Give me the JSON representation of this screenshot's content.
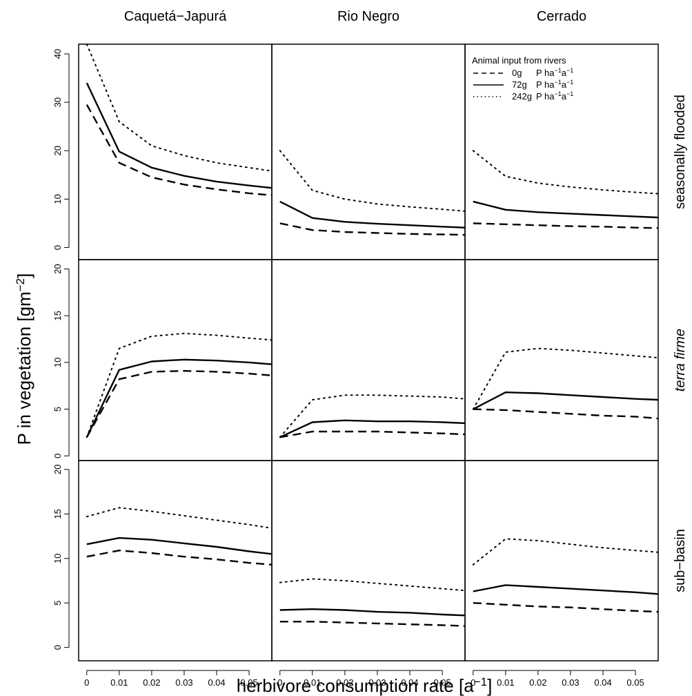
{
  "chart_data": {
    "type": "line",
    "columns": [
      "Caquetá−Japurá",
      "Rio Negro",
      "Cerrado"
    ],
    "rows": [
      "seasonally flooded",
      "terra firme",
      "sub−basin"
    ],
    "row_italic": [
      false,
      true,
      false
    ],
    "ylabel": "P in vegetation [gm",
    "ylabel_sup": "−2",
    "ylabel_close": "]",
    "xlabel": "herbivore consumption rate [a",
    "xlabel_sup": "−1",
    "xlabel_close": "]",
    "x": [
      0,
      0.01,
      0.02,
      0.03,
      0.04,
      0.05,
      0.057
    ],
    "xlim": [
      -0.0025,
      0.057
    ],
    "x_ticks": [
      0,
      0.01,
      0.02,
      0.03,
      0.04,
      0.05
    ],
    "x_tick_labels": [
      "0",
      "0.01",
      "0.02",
      "0.03",
      "0.04",
      "0.05"
    ],
    "ylim_by_row": [
      [
        -2.5,
        42
      ],
      [
        -0.5,
        21
      ],
      [
        -1.5,
        21
      ]
    ],
    "y_ticks_by_row": [
      [
        0,
        10,
        20,
        30,
        40
      ],
      [
        0,
        5,
        10,
        15,
        20
      ],
      [
        0,
        5,
        10,
        15,
        20
      ]
    ],
    "legend": {
      "title": "Animal input from rivers",
      "placement": "top-right",
      "entries": [
        {
          "amount": "0g",
          "unit": "P ha",
          "sup1": "−1",
          "mid": "a",
          "sup2": "−1",
          "style": "dashed"
        },
        {
          "amount": "72g",
          "unit": "P ha",
          "sup1": "−1",
          "mid": "a",
          "sup2": "−1",
          "style": "solid"
        },
        {
          "amount": "242g",
          "unit": "P ha",
          "sup1": "−1",
          "mid": "a",
          "sup2": "−1",
          "style": "dotted"
        }
      ]
    },
    "panels": [
      [
        {
          "series": [
            {
              "style": "dashed",
              "values": [
                29.5,
                17.5,
                14.5,
                13.0,
                12.0,
                11.2,
                10.8
              ]
            },
            {
              "style": "solid",
              "values": [
                34.0,
                19.8,
                16.5,
                14.8,
                13.6,
                12.8,
                12.3
              ]
            },
            {
              "style": "dotted",
              "values": [
                42.0,
                26.0,
                21.0,
                19.0,
                17.5,
                16.5,
                15.8
              ]
            }
          ]
        },
        {
          "series": [
            {
              "style": "dashed",
              "values": [
                5.0,
                3.6,
                3.2,
                3.0,
                2.8,
                2.7,
                2.6
              ]
            },
            {
              "style": "solid",
              "values": [
                9.5,
                6.1,
                5.3,
                4.9,
                4.6,
                4.3,
                4.1
              ]
            },
            {
              "style": "dotted",
              "values": [
                20.0,
                11.8,
                10.0,
                9.0,
                8.4,
                7.9,
                7.5
              ]
            }
          ]
        },
        {
          "series": [
            {
              "style": "dashed",
              "values": [
                5.0,
                4.8,
                4.6,
                4.4,
                4.3,
                4.1,
                4.0
              ]
            },
            {
              "style": "solid",
              "values": [
                9.5,
                7.8,
                7.3,
                7.0,
                6.7,
                6.4,
                6.2
              ]
            },
            {
              "style": "dotted",
              "values": [
                20.0,
                14.7,
                13.3,
                12.5,
                11.9,
                11.4,
                11.1
              ]
            }
          ]
        }
      ],
      [
        {
          "series": [
            {
              "style": "dashed",
              "values": [
                2.0,
                8.2,
                9.0,
                9.1,
                9.0,
                8.8,
                8.6
              ]
            },
            {
              "style": "solid",
              "values": [
                2.0,
                9.2,
                10.1,
                10.3,
                10.2,
                10.0,
                9.8
              ]
            },
            {
              "style": "dotted",
              "values": [
                2.0,
                11.5,
                12.8,
                13.1,
                12.9,
                12.6,
                12.4
              ]
            }
          ]
        },
        {
          "series": [
            {
              "style": "dashed",
              "values": [
                2.0,
                2.6,
                2.6,
                2.6,
                2.5,
                2.4,
                2.3
              ]
            },
            {
              "style": "solid",
              "values": [
                2.0,
                3.6,
                3.8,
                3.7,
                3.7,
                3.6,
                3.5
              ]
            },
            {
              "style": "dotted",
              "values": [
                2.0,
                6.0,
                6.5,
                6.5,
                6.4,
                6.3,
                6.1
              ]
            }
          ]
        },
        {
          "series": [
            {
              "style": "dashed",
              "values": [
                5.0,
                4.9,
                4.7,
                4.5,
                4.3,
                4.2,
                4.0
              ]
            },
            {
              "style": "solid",
              "values": [
                5.0,
                6.8,
                6.7,
                6.5,
                6.3,
                6.1,
                6.0
              ]
            },
            {
              "style": "dotted",
              "values": [
                5.0,
                11.1,
                11.5,
                11.3,
                11.0,
                10.7,
                10.5
              ]
            }
          ]
        }
      ],
      [
        {
          "series": [
            {
              "style": "dashed",
              "values": [
                10.2,
                10.9,
                10.6,
                10.2,
                9.9,
                9.5,
                9.3
              ]
            },
            {
              "style": "solid",
              "values": [
                11.6,
                12.3,
                12.1,
                11.7,
                11.3,
                10.8,
                10.5
              ]
            },
            {
              "style": "dotted",
              "values": [
                14.7,
                15.7,
                15.3,
                14.8,
                14.3,
                13.8,
                13.4
              ]
            }
          ]
        },
        {
          "series": [
            {
              "style": "dashed",
              "values": [
                2.9,
                2.9,
                2.8,
                2.7,
                2.6,
                2.5,
                2.4
              ]
            },
            {
              "style": "solid",
              "values": [
                4.2,
                4.3,
                4.2,
                4.0,
                3.9,
                3.7,
                3.6
              ]
            },
            {
              "style": "dotted",
              "values": [
                7.3,
                7.7,
                7.5,
                7.2,
                6.9,
                6.6,
                6.4
              ]
            }
          ]
        },
        {
          "series": [
            {
              "style": "dashed",
              "values": [
                5.0,
                4.8,
                4.6,
                4.5,
                4.3,
                4.1,
                4.0
              ]
            },
            {
              "style": "solid",
              "values": [
                6.3,
                7.0,
                6.8,
                6.6,
                6.4,
                6.2,
                6.0
              ]
            },
            {
              "style": "dotted",
              "values": [
                9.3,
                12.2,
                12.0,
                11.6,
                11.2,
                10.9,
                10.7
              ]
            }
          ]
        }
      ]
    ]
  }
}
